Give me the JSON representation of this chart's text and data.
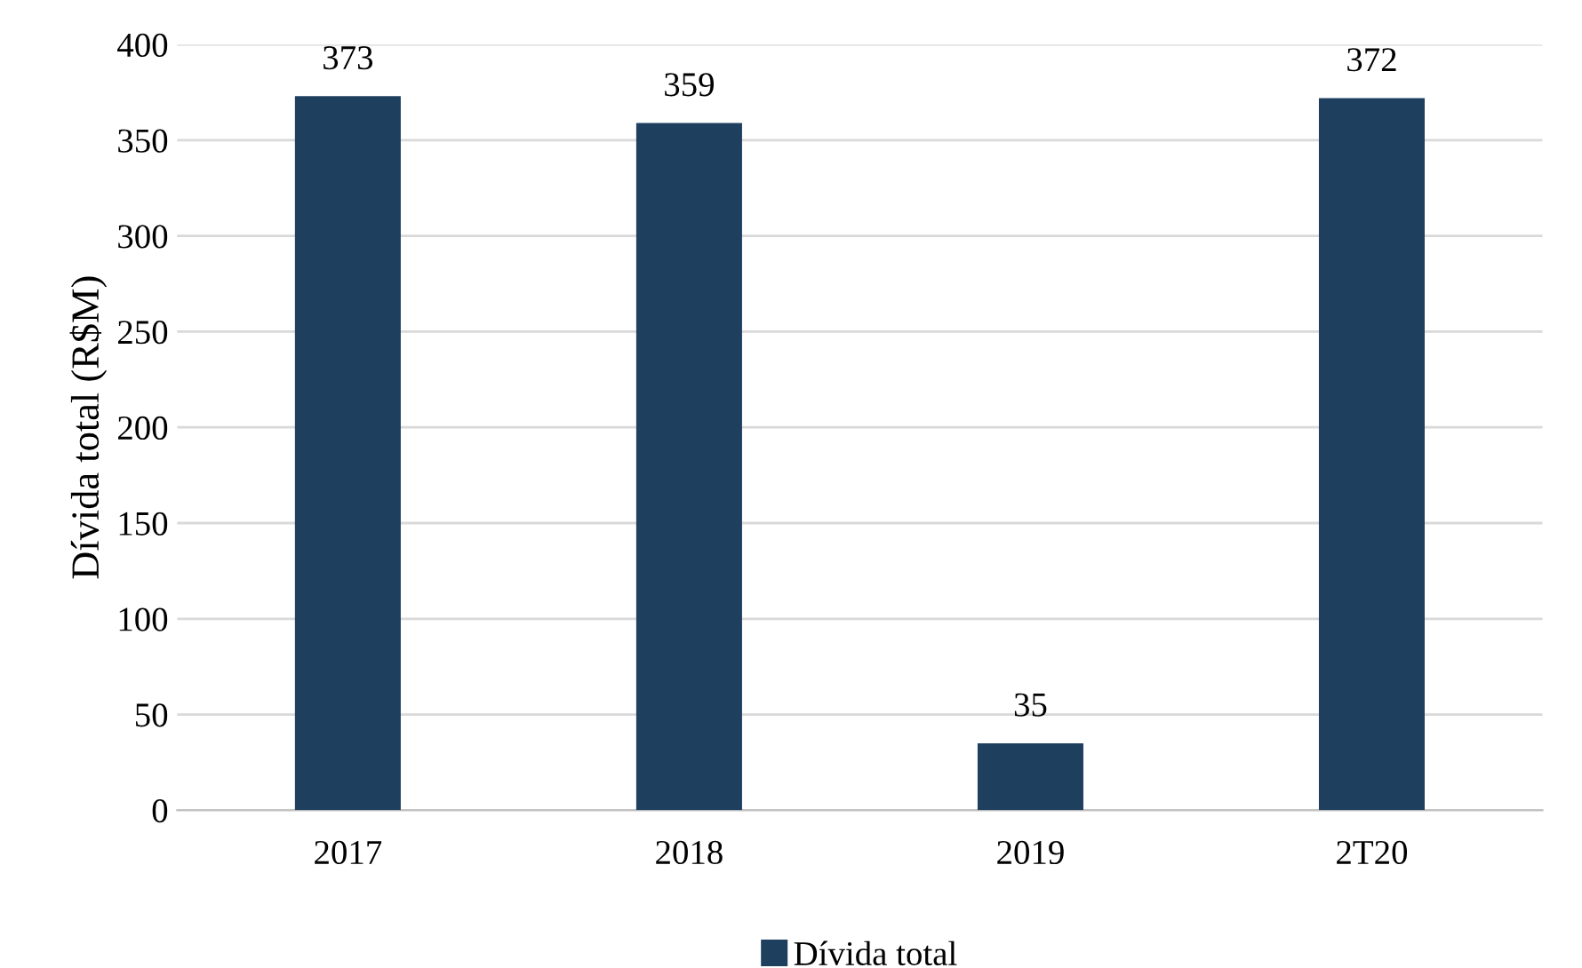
{
  "chart_data": {
    "type": "bar",
    "ylabel": "Dívida total (R$M)",
    "categories": [
      "2017",
      "2018",
      "2019",
      "2T20"
    ],
    "series": [
      {
        "name": "Dívida total",
        "color": "#1f3f5f",
        "values": [
          373,
          359,
          35,
          372
        ]
      }
    ],
    "ylim": [
      0,
      400
    ],
    "yticks": [
      0,
      50,
      100,
      150,
      200,
      250,
      300,
      350,
      400
    ],
    "grid": "y",
    "legend": "bottom",
    "data_labels": true
  }
}
